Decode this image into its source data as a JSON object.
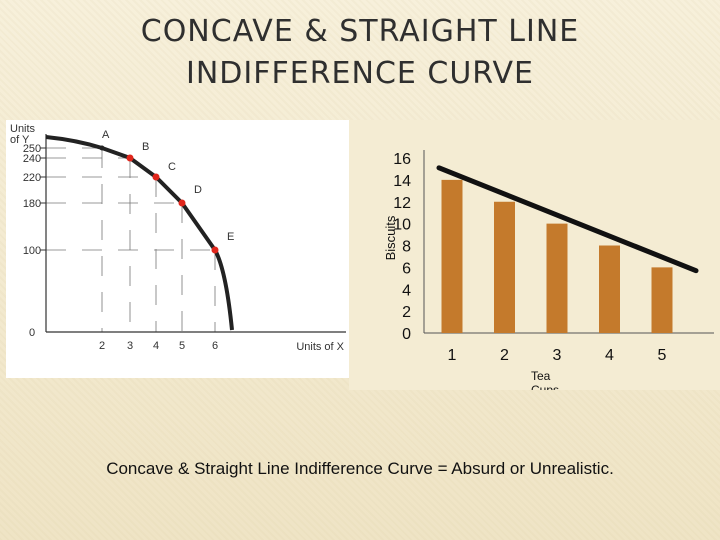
{
  "slide": {
    "title_line1": "CONCAVE  & STRAIGHT LINE",
    "title_line2": "INDIFFERENCE CURVE",
    "caption": "Concave  & Straight Line Indifference Curve = Absurd or Unrealistic."
  },
  "chart_data": [
    {
      "type": "line",
      "ylabel": "Units of Y",
      "xlabel": "Units of X",
      "y_ticks": [
        "250",
        "240",
        "220",
        "180",
        "100",
        "0"
      ],
      "x_ticks": [
        "2",
        "3",
        "4",
        "5",
        "6"
      ],
      "points": [
        {
          "label": "A",
          "x": 2,
          "y": 250
        },
        {
          "label": "B",
          "x": 3,
          "y": 240
        },
        {
          "label": "C",
          "x": 4,
          "y": 220
        },
        {
          "label": "D",
          "x": 5,
          "y": 180
        },
        {
          "label": "E",
          "x": 6,
          "y": 100
        }
      ],
      "curve": "concave"
    },
    {
      "type": "bar",
      "ylabel": "Biscuits",
      "xlabel": "Tea Cups",
      "categories": [
        "1",
        "2",
        "3",
        "4",
        "5"
      ],
      "values": [
        14,
        12,
        10,
        8,
        6
      ],
      "y_ticks": [
        "16",
        "14",
        "12",
        "10",
        "8",
        "6",
        "4",
        "2",
        "0"
      ],
      "ylim": [
        0,
        16
      ],
      "bar_color": "#c47a2c",
      "overlay": "straight line through bar tops"
    }
  ]
}
